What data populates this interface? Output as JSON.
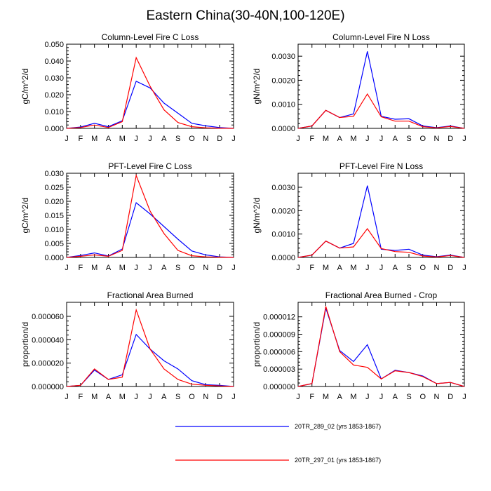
{
  "title": "Eastern China(30-40N,100-120E)",
  "colors": {
    "run1": "#0000ff",
    "run2": "#ff0000",
    "axis": "#000000"
  },
  "legend": [
    {
      "label": "20TR_289_02 (yrs 1853-1867)",
      "color": "#0000ff"
    },
    {
      "label": "20TR_297_01 (yrs 1853-1867)",
      "color": "#ff0000"
    }
  ],
  "chart_data": [
    {
      "type": "line",
      "title": "Column-Level Fire C Loss",
      "ylabel": "gC/m^2/d",
      "categories": [
        "J",
        "F",
        "M",
        "A",
        "M",
        "J",
        "J",
        "A",
        "S",
        "O",
        "N",
        "D",
        "J"
      ],
      "ylim": [
        0,
        0.05
      ],
      "yticks": [
        "0.000",
        "0.010",
        "0.020",
        "0.030",
        "0.040",
        "0.050"
      ],
      "yticks_values": [
        0,
        0.01,
        0.02,
        0.03,
        0.04,
        0.05
      ],
      "series": [
        {
          "name": "20TR_289_02 (yrs 1853-1867)",
          "values": [
            0.0,
            0.0008,
            0.003,
            0.001,
            0.0045,
            0.028,
            0.024,
            0.015,
            0.009,
            0.003,
            0.0015,
            0.0005,
            0.0
          ]
        },
        {
          "name": "20TR_297_01 (yrs 1853-1867)",
          "values": [
            0.0,
            0.0005,
            0.002,
            0.0005,
            0.004,
            0.042,
            0.025,
            0.011,
            0.0035,
            0.001,
            0.0003,
            0.0001,
            0.0
          ]
        }
      ]
    },
    {
      "type": "line",
      "title": "Column-Level Fire N Loss",
      "ylabel": "gN/m^2/d",
      "categories": [
        "J",
        "F",
        "M",
        "A",
        "M",
        "J",
        "J",
        "A",
        "S",
        "O",
        "N",
        "D",
        "J"
      ],
      "ylim": [
        0,
        0.0035
      ],
      "yticks": [
        "0.0000",
        "0.0010",
        "0.0020",
        "0.0030"
      ],
      "yticks_values": [
        0,
        0.001,
        0.002,
        0.003
      ],
      "series": [
        {
          "name": "20TR_289_02 (yrs 1853-1867)",
          "values": [
            0.0,
            0.0001,
            0.00075,
            0.00045,
            0.0006,
            0.0032,
            0.0005,
            0.00038,
            0.0004,
            0.0001,
            3e-05,
            0.0001,
            0.0
          ]
        },
        {
          "name": "20TR_297_01 (yrs 1853-1867)",
          "values": [
            0.0,
            0.0001,
            0.00075,
            0.00045,
            0.0005,
            0.00143,
            0.00048,
            0.0003,
            0.0003,
            7e-05,
            2e-05,
            8e-05,
            0.0
          ]
        }
      ]
    },
    {
      "type": "line",
      "title": "PFT-Level Fire C Loss",
      "ylabel": "gC/m^2/d",
      "categories": [
        "J",
        "F",
        "M",
        "A",
        "M",
        "J",
        "J",
        "A",
        "S",
        "O",
        "N",
        "D",
        "J"
      ],
      "ylim": [
        0,
        0.03
      ],
      "yticks": [
        "0.000",
        "0.005",
        "0.010",
        "0.015",
        "0.020",
        "0.025",
        "0.030"
      ],
      "yticks_values": [
        0,
        0.005,
        0.01,
        0.015,
        0.02,
        0.025,
        0.03
      ],
      "series": [
        {
          "name": "20TR_289_02 (yrs 1853-1867)",
          "values": [
            0.0,
            0.0007,
            0.0016,
            0.0005,
            0.003,
            0.0195,
            0.0155,
            0.011,
            0.0065,
            0.0023,
            0.0009,
            0.0002,
            0.0
          ]
        },
        {
          "name": "20TR_297_01 (yrs 1853-1867)",
          "values": [
            0.0,
            0.0004,
            0.0009,
            0.0004,
            0.0025,
            0.0292,
            0.0165,
            0.0085,
            0.0025,
            0.0006,
            0.0002,
            0.0001,
            0.0
          ]
        }
      ]
    },
    {
      "type": "line",
      "title": "PFT-Level Fire N Loss",
      "ylabel": "gN/m^2/d",
      "categories": [
        "J",
        "F",
        "M",
        "A",
        "M",
        "J",
        "J",
        "A",
        "S",
        "O",
        "N",
        "D",
        "J"
      ],
      "ylim": [
        0,
        0.0036
      ],
      "yticks": [
        "0.0000",
        "0.0010",
        "0.0020",
        "0.0030"
      ],
      "yticks_values": [
        0,
        0.001,
        0.002,
        0.003
      ],
      "series": [
        {
          "name": "20TR_289_02 (yrs 1853-1867)",
          "values": [
            0.0,
            0.0001,
            0.0007,
            0.0004,
            0.0006,
            0.00307,
            0.00035,
            0.0003,
            0.00035,
            0.0001,
            3e-05,
            0.0001,
            0.0
          ]
        },
        {
          "name": "20TR_297_01 (yrs 1853-1867)",
          "values": [
            0.0,
            0.0001,
            0.0007,
            0.0004,
            0.00045,
            0.00123,
            0.00038,
            0.00025,
            0.00022,
            6e-05,
            2e-05,
            8e-05,
            0.0
          ]
        }
      ]
    },
    {
      "type": "line",
      "title": "Fractional Area Burned",
      "ylabel": "proportion/d",
      "categories": [
        "J",
        "F",
        "M",
        "A",
        "M",
        "J",
        "J",
        "A",
        "S",
        "O",
        "N",
        "D",
        "J"
      ],
      "ylim": [
        0,
        7.2e-05
      ],
      "yticks": [
        "0.000000",
        "0.000020",
        "0.000040",
        "0.000060"
      ],
      "yticks_values": [
        0,
        2e-05,
        4e-05,
        6e-05
      ],
      "series": [
        {
          "name": "20TR_289_02 (yrs 1853-1867)",
          "values": [
            0.0,
            1e-06,
            1.4e-05,
            6e-06,
            1e-05,
            4.45e-05,
            3.2e-05,
            2.2e-05,
            1.5e-05,
            5e-06,
            1.5e-06,
            1e-06,
            0.0
          ]
        },
        {
          "name": "20TR_297_01 (yrs 1853-1867)",
          "values": [
            0.0,
            1e-06,
            1.5e-05,
            6e-06,
            8e-06,
            6.55e-05,
            3.2e-05,
            1.5e-05,
            6e-06,
            2e-06,
            1e-06,
            5e-07,
            0.0
          ]
        }
      ]
    },
    {
      "type": "line",
      "title": "Fractional Area Burned - Crop",
      "ylabel": "proportion/d",
      "categories": [
        "J",
        "F",
        "M",
        "A",
        "M",
        "J",
        "J",
        "A",
        "S",
        "O",
        "N",
        "D",
        "J"
      ],
      "ylim": [
        0,
        1.45e-05
      ],
      "yticks": [
        "0.000000",
        "0.000003",
        "0.000006",
        "0.000009",
        "0.000012"
      ],
      "yticks_values": [
        0,
        3e-06,
        6e-06,
        9e-06,
        1.2e-05
      ],
      "series": [
        {
          "name": "20TR_289_02 (yrs 1853-1867)",
          "values": [
            0.0,
            5e-07,
            1.35e-05,
            6.2e-06,
            4.3e-06,
            7.2e-06,
            1.3e-06,
            2.8e-06,
            2.4e-06,
            1.8e-06,
            5e-07,
            7e-07,
            0.0
          ]
        },
        {
          "name": "20TR_297_01 (yrs 1853-1867)",
          "values": [
            0.0,
            5e-07,
            1.38e-05,
            6e-06,
            3.7e-06,
            3.3e-06,
            1.3e-06,
            2.7e-06,
            2.4e-06,
            1.7e-06,
            5e-07,
            7e-07,
            0.0
          ]
        }
      ]
    }
  ]
}
